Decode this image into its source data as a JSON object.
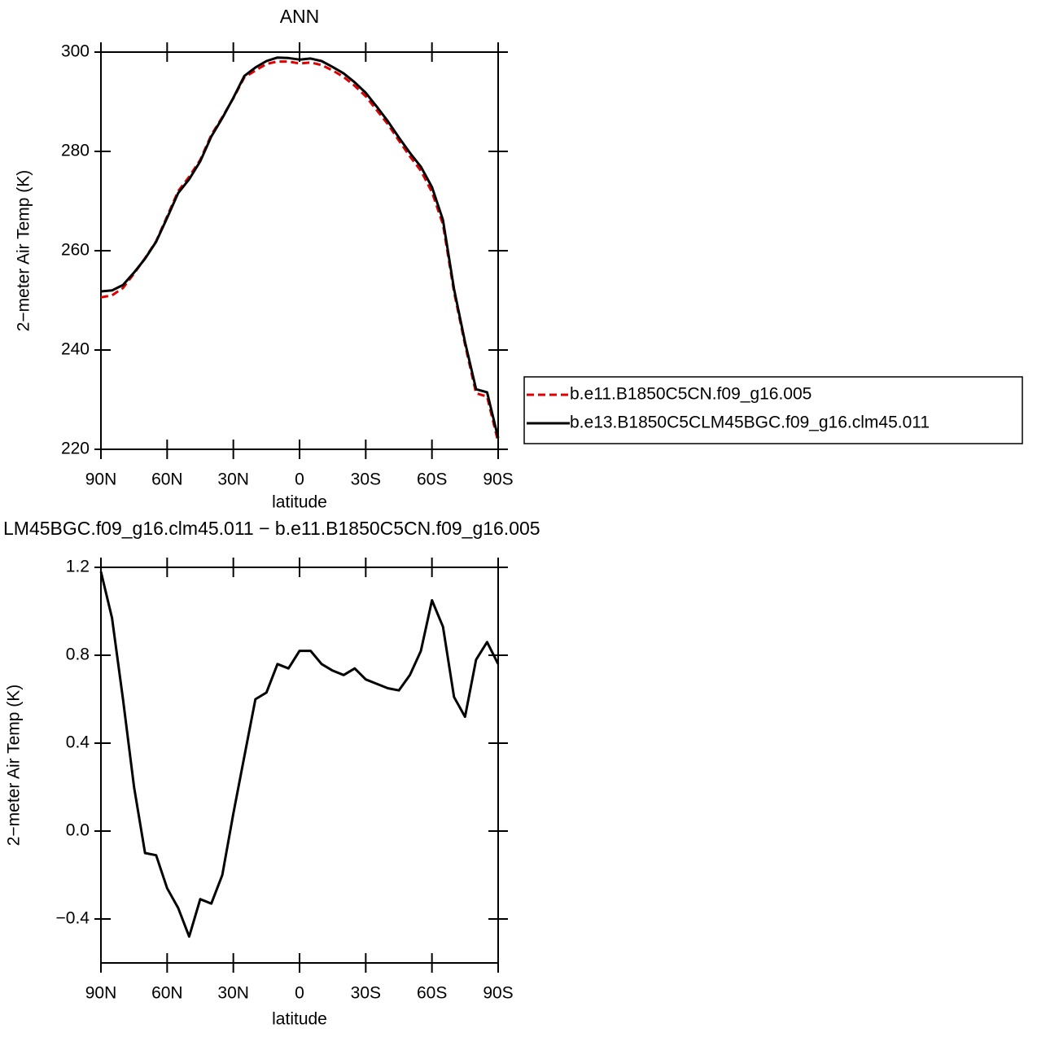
{
  "chart_data": [
    {
      "type": "line",
      "title": "ANN",
      "xlabel": "latitude",
      "ylabel": "2−meter Air Temp (K)",
      "x": [
        90,
        85,
        80,
        75,
        70,
        65,
        60,
        55,
        50,
        45,
        40,
        35,
        30,
        25,
        20,
        15,
        10,
        5,
        0,
        -5,
        -10,
        -15,
        -20,
        -25,
        -30,
        -35,
        -40,
        -45,
        -50,
        -55,
        -60,
        -65,
        -70,
        -75,
        -80,
        -85,
        -90
      ],
      "series": [
        {
          "name": "b.e11.B1850C5CN.f09_g16.005",
          "color": "#e00000",
          "dashed": true,
          "values": [
            250.6,
            251.0,
            252.5,
            255.4,
            258.5,
            261.9,
            266.9,
            272.0,
            274.9,
            278.3,
            283.3,
            286.9,
            290.7,
            294.9,
            296.3,
            297.6,
            298.1,
            298.1,
            297.7,
            297.9,
            297.4,
            296.3,
            295.0,
            293.2,
            291.1,
            288.3,
            285.5,
            282.2,
            279.0,
            276.1,
            271.8,
            265.3,
            251.7,
            241.1,
            231.3,
            230.6,
            221.5
          ]
        },
        {
          "name": "b.e13.B1850C5CLM45BGC.f09_g16.clm45.011",
          "color": "#000000",
          "dashed": false,
          "values": [
            251.8,
            252.0,
            253.1,
            255.6,
            258.4,
            261.8,
            266.6,
            271.6,
            274.4,
            278.0,
            283.0,
            286.7,
            290.8,
            295.2,
            296.9,
            298.2,
            298.9,
            298.8,
            298.5,
            298.7,
            298.2,
            297.0,
            295.7,
            293.9,
            291.8,
            289.0,
            286.1,
            282.8,
            279.7,
            276.9,
            272.8,
            266.2,
            252.3,
            241.6,
            232.1,
            231.5,
            222.3
          ]
        }
      ],
      "xlim": [
        90,
        -90
      ],
      "xticks": [
        {
          "value": 90,
          "label": "90N"
        },
        {
          "value": 60,
          "label": "60N"
        },
        {
          "value": 30,
          "label": "30N"
        },
        0,
        {
          "value": -30,
          "label": "30S"
        },
        {
          "value": -60,
          "label": "60S"
        },
        {
          "value": -90,
          "label": "90S"
        }
      ],
      "ylim": [
        220,
        300
      ],
      "yticks": [
        220,
        240,
        260,
        280,
        300
      ],
      "legend": "right"
    },
    {
      "type": "line",
      "title": "LM45BGC.f09_g16.clm45.011 − b.e11.B1850C5CN.f09_g16.005",
      "xlabel": "latitude",
      "ylabel": "2−meter Air Temp (K)",
      "x": [
        90,
        85,
        80,
        75,
        70,
        65,
        60,
        55,
        50,
        45,
        40,
        35,
        30,
        25,
        20,
        15,
        10,
        5,
        0,
        -5,
        -10,
        -15,
        -20,
        -25,
        -30,
        -35,
        -40,
        -45,
        -50,
        -55,
        -60,
        -65,
        -70,
        -75,
        -80,
        -85,
        -90
      ],
      "series": [
        {
          "color": "#000000",
          "dashed": false,
          "values": [
            1.18,
            0.97,
            0.6,
            0.2,
            -0.1,
            -0.11,
            -0.26,
            -0.35,
            -0.48,
            -0.31,
            -0.33,
            -0.2,
            0.08,
            0.34,
            0.6,
            0.63,
            0.76,
            0.74,
            0.82,
            0.82,
            0.76,
            0.73,
            0.71,
            0.74,
            0.69,
            0.67,
            0.65,
            0.64,
            0.71,
            0.82,
            1.05,
            0.93,
            0.61,
            0.52,
            0.78,
            0.86,
            0.76
          ]
        }
      ],
      "xlim": [
        90,
        -90
      ],
      "xticks": [
        {
          "value": 90,
          "label": "90N"
        },
        {
          "value": 60,
          "label": "60N"
        },
        {
          "value": 30,
          "label": "30N"
        },
        0,
        {
          "value": -30,
          "label": "30S"
        },
        {
          "value": -60,
          "label": "60S"
        },
        {
          "value": -90,
          "label": "90S"
        }
      ],
      "ylim": [
        -0.6,
        1.2
      ],
      "yticks": [
        {
          "value": -0.4,
          "label": "−0.4"
        },
        {
          "value": 0,
          "label": "0.0"
        },
        {
          "value": 0.4,
          "label": "0.4"
        },
        {
          "value": 0.8,
          "label": "0.8"
        },
        {
          "value": 1.2,
          "label": "1.2"
        }
      ]
    }
  ]
}
